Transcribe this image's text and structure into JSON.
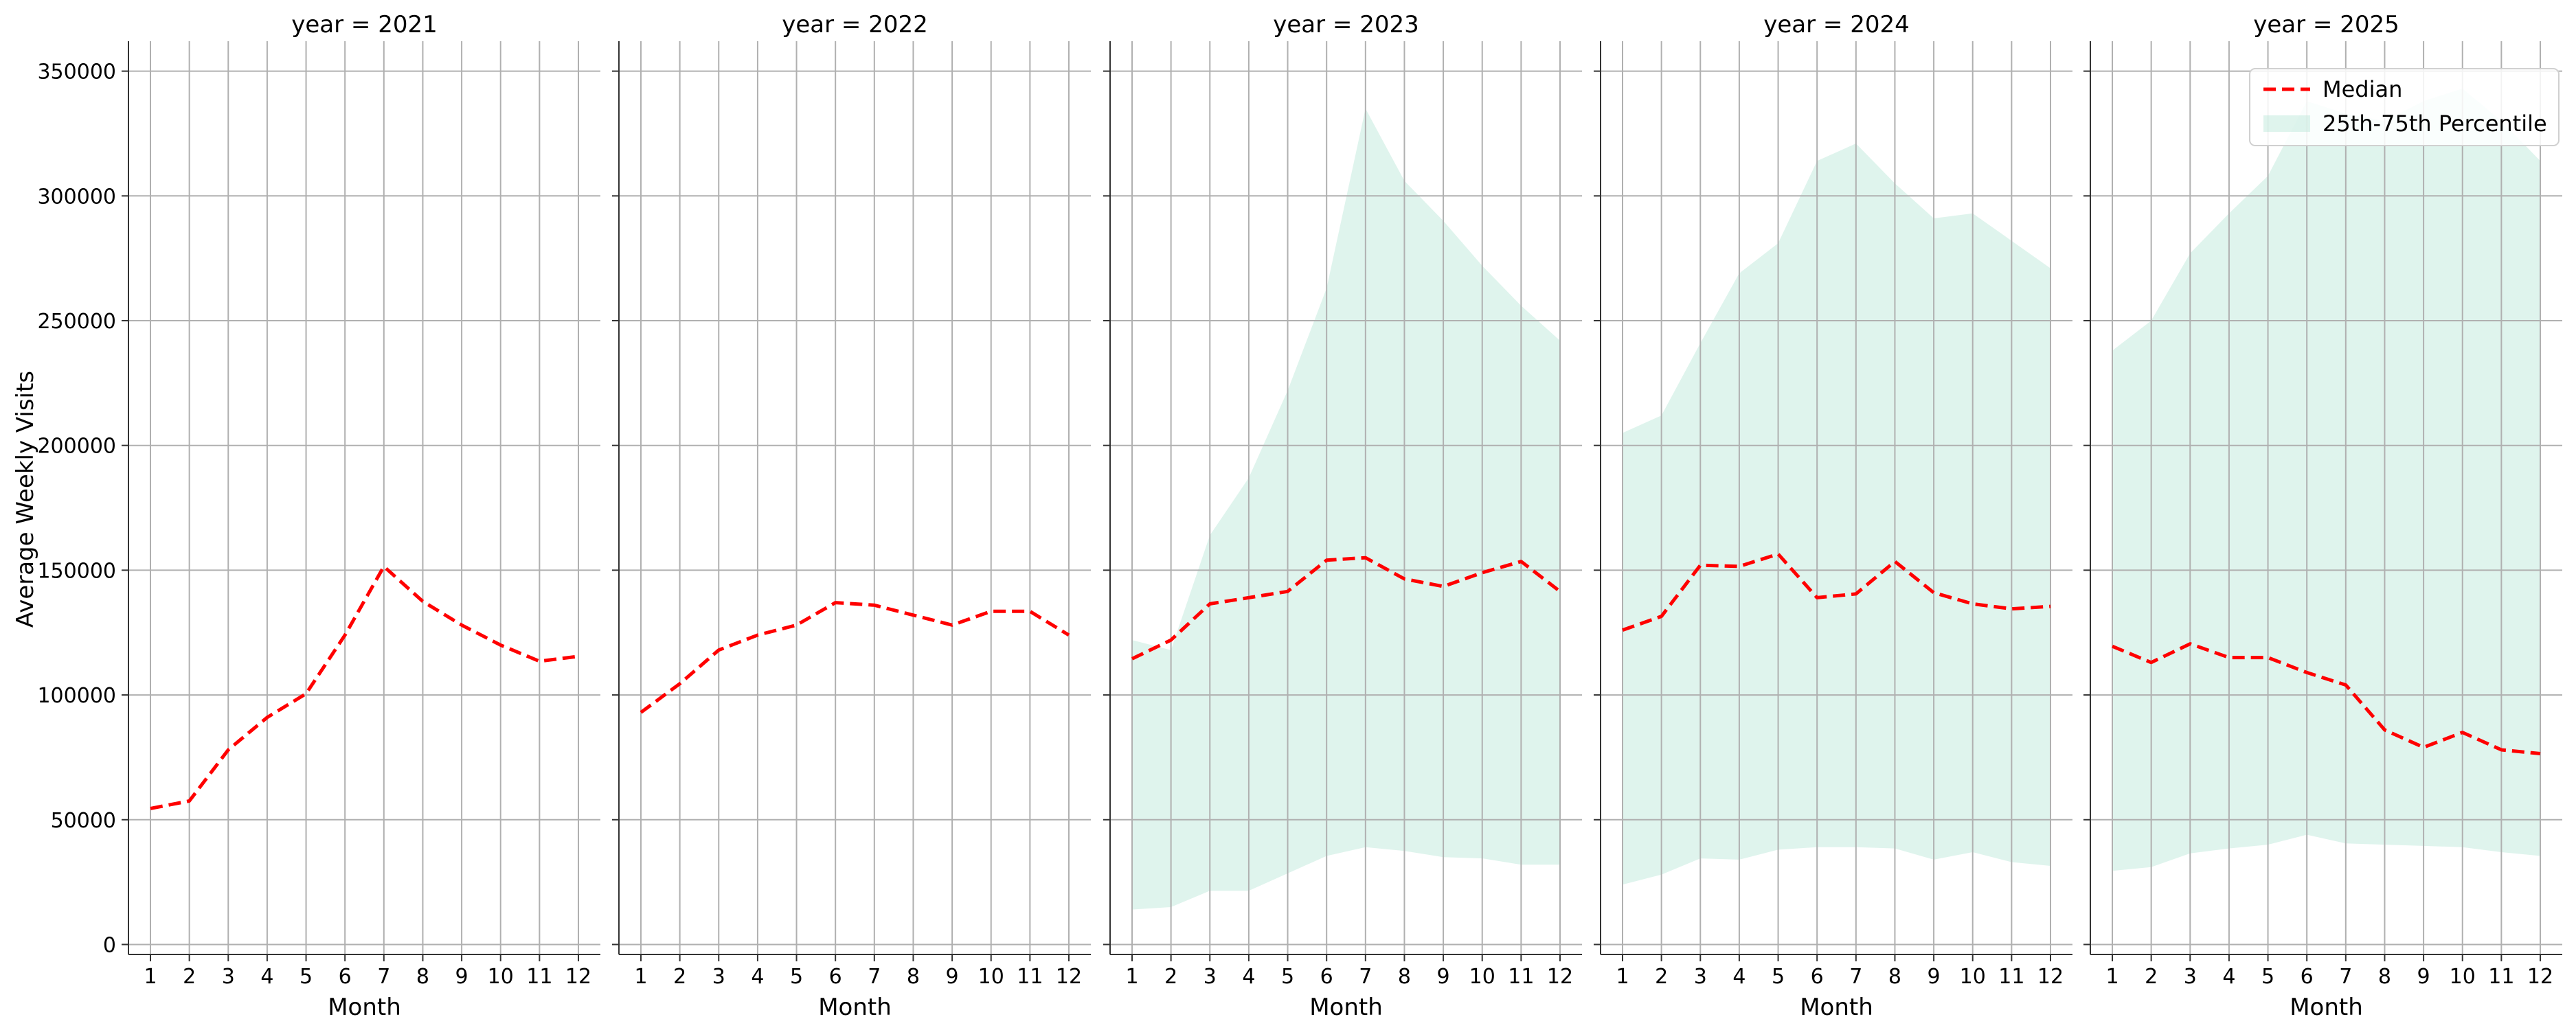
{
  "chart_data": {
    "type": "line",
    "ylabel": "Average Weekly Visits",
    "xlabel": "Month",
    "x": [
      1,
      2,
      3,
      4,
      5,
      6,
      7,
      8,
      9,
      10,
      11,
      12
    ],
    "xticks": [
      "1",
      "2",
      "3",
      "4",
      "5",
      "6",
      "7",
      "8",
      "9",
      "10",
      "11",
      "12"
    ],
    "ylim": [
      -4000,
      362000
    ],
    "yticks": [
      "0",
      "50000",
      "100000",
      "150000",
      "200000",
      "250000",
      "300000",
      "350000"
    ],
    "grid": true,
    "legend_location": "top-right",
    "legend": [
      {
        "label": "Median",
        "style": "dashed-line",
        "color": "#ff0000"
      },
      {
        "label": "25th-75th Percentile",
        "style": "band",
        "color": "#b9e6d8"
      }
    ],
    "colors": {
      "median": "#ff0000",
      "band": "#b9e6d8"
    },
    "panels": [
      {
        "title": "year = 2021",
        "median": [
          54500,
          57500,
          78000,
          91000,
          100500,
          124000,
          151500,
          137500,
          128000,
          120000,
          113500,
          115500
        ],
        "p25": null,
        "p75": null
      },
      {
        "title": "year = 2022",
        "median": [
          93000,
          104500,
          118000,
          124000,
          128000,
          137000,
          136000,
          132000,
          128000,
          133500,
          133500,
          124000
        ],
        "p25": null,
        "p75": null
      },
      {
        "title": "year = 2023",
        "median": [
          114500,
          122000,
          136500,
          139000,
          141500,
          154000,
          155000,
          146500,
          143500,
          149000,
          153500,
          141500
        ],
        "p25": [
          14000,
          15000,
          21500,
          21500,
          28500,
          35500,
          39000,
          37500,
          35000,
          34500,
          32000,
          32000
        ],
        "p75": [
          122000,
          118000,
          164000,
          187000,
          222000,
          263000,
          335000,
          306000,
          290000,
          272000,
          256000,
          242000
        ]
      },
      {
        "title": "year = 2024",
        "median": [
          126000,
          131500,
          152000,
          151500,
          156500,
          139000,
          140500,
          153500,
          141000,
          136500,
          134500,
          135500
        ],
        "p25": [
          24000,
          28000,
          34500,
          34000,
          38000,
          39000,
          39000,
          38500,
          34000,
          37000,
          33000,
          31500
        ],
        "p75": [
          205000,
          212000,
          241000,
          269000,
          281000,
          314000,
          321000,
          305000,
          291000,
          293000,
          282000,
          271000
        ]
      },
      {
        "title": "year = 2025",
        "median": [
          119500,
          113000,
          120500,
          115000,
          115000,
          109000,
          104000,
          86000,
          79000,
          85000,
          78000,
          76500
        ],
        "p25": [
          29500,
          31000,
          36500,
          38500,
          40000,
          44000,
          40500,
          40000,
          39500,
          39000,
          37000,
          35500
        ],
        "p75": [
          238000,
          250000,
          277000,
          293000,
          308000,
          338000,
          333000,
          330000,
          338000,
          343000,
          330000,
          314000
        ]
      }
    ]
  }
}
